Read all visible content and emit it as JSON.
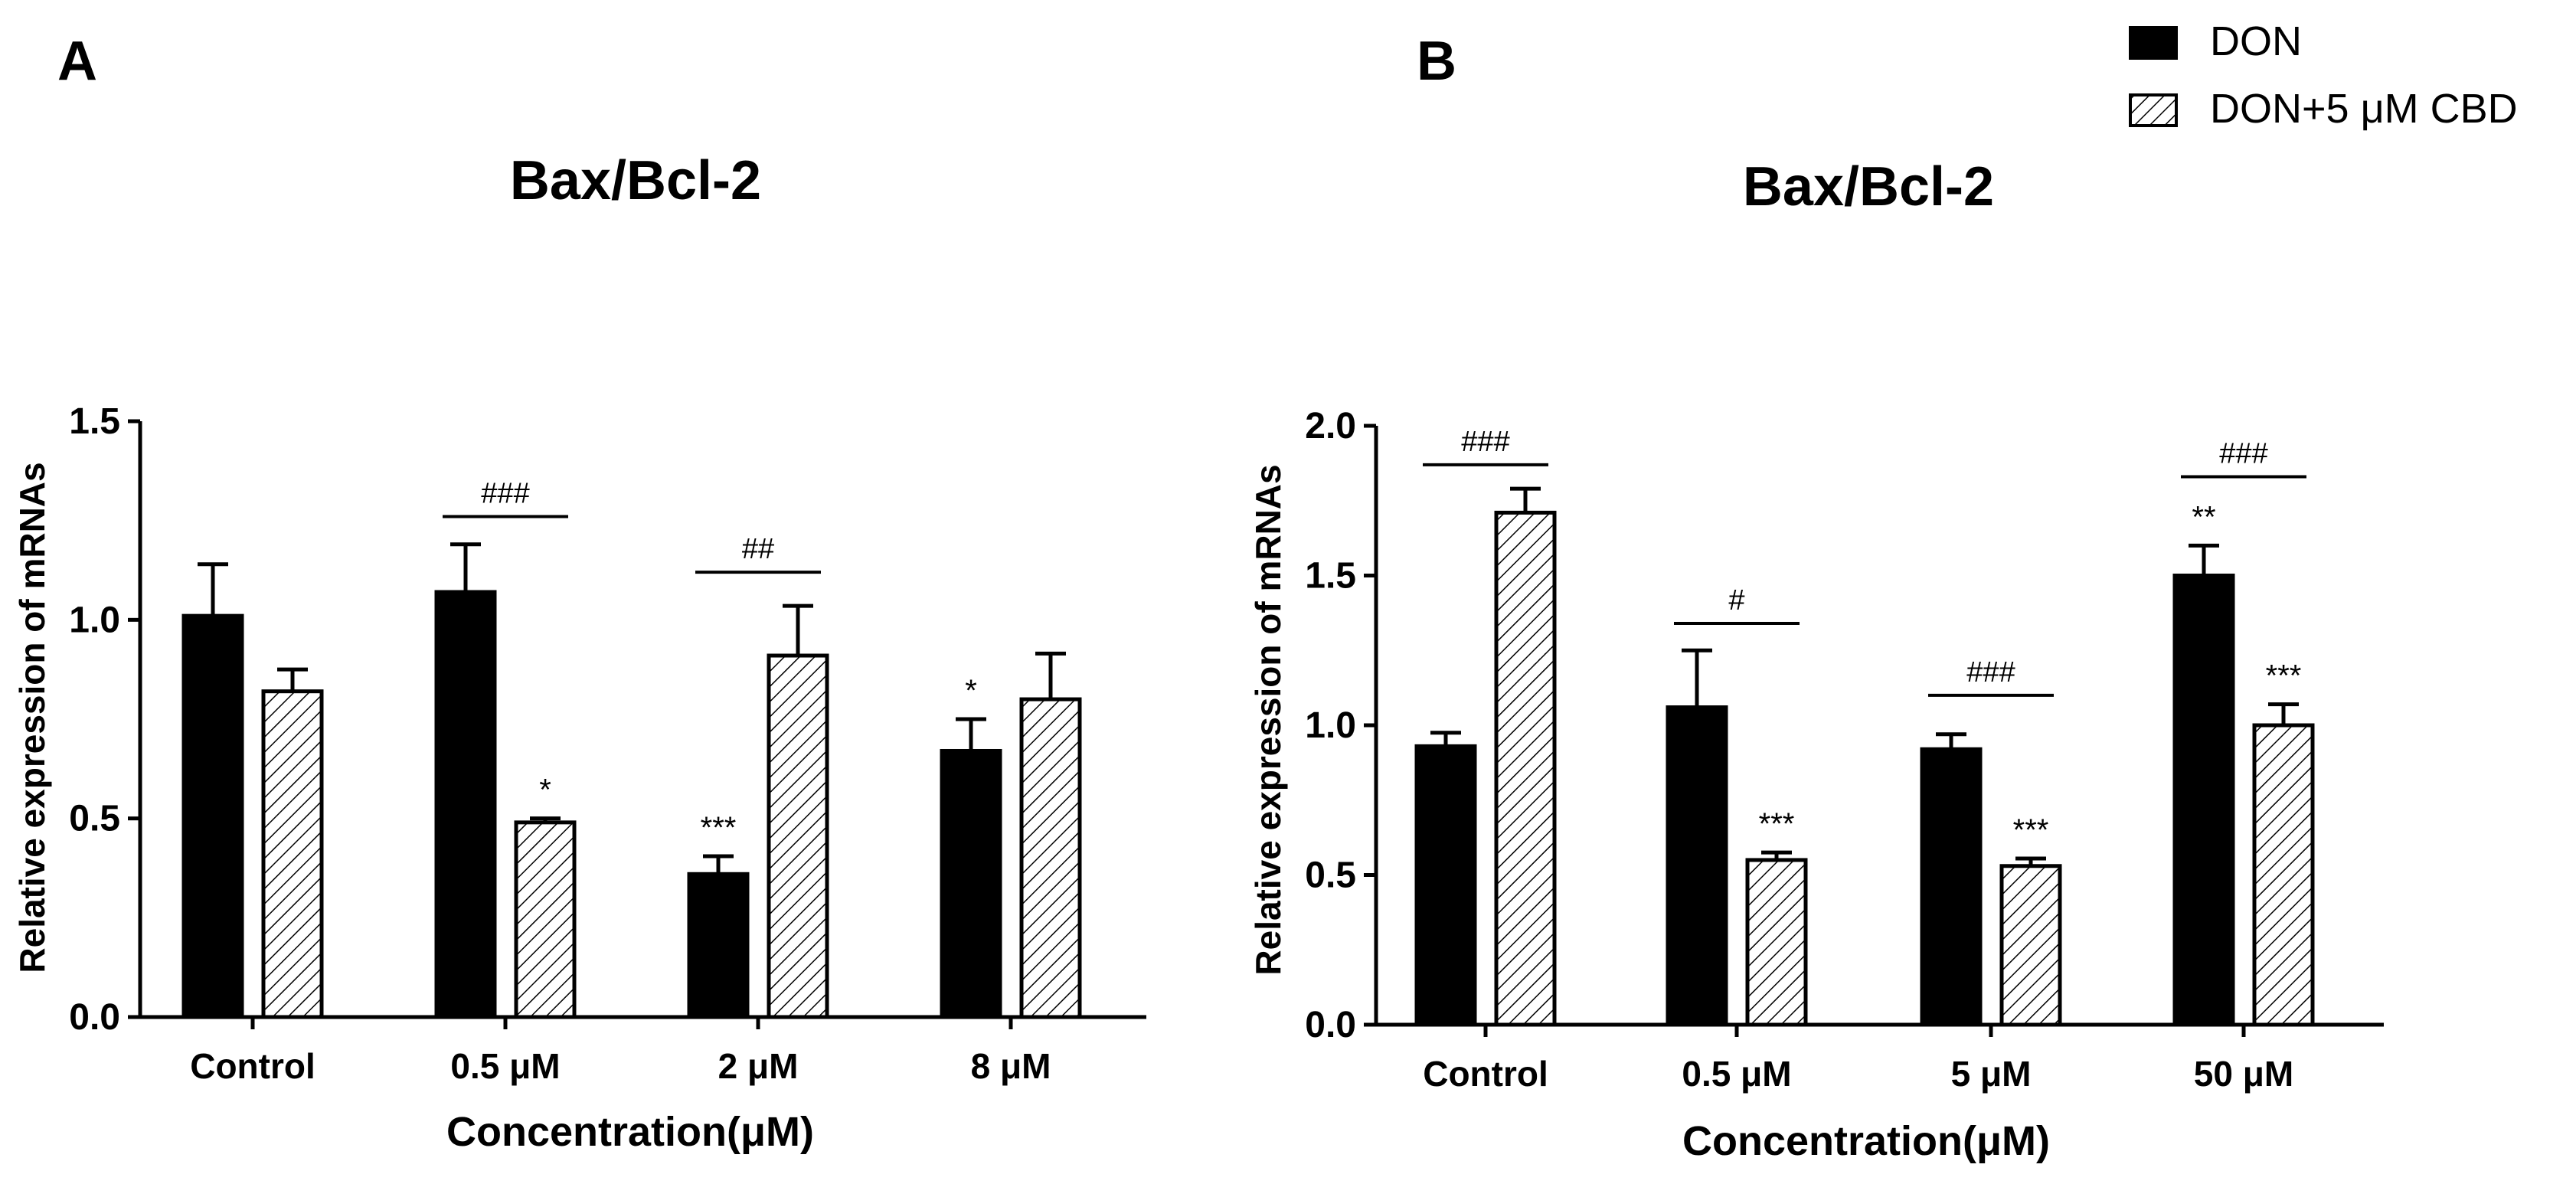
{
  "legend": {
    "position": "top-right",
    "items": [
      {
        "label": "DON",
        "pattern": "solid"
      },
      {
        "label": "DON+5 μM CBD",
        "pattern": "hatch"
      }
    ]
  },
  "colors": {
    "don": "#000000",
    "cbd_fill": "#ffffff",
    "axis": "#000000"
  },
  "chart_data": [
    {
      "panel_label": "A",
      "type": "bar",
      "title": "Bax/Bcl-2",
      "xlabel": "Concentration(μM)",
      "ylabel": "Relative expression of mRNAs",
      "ylim": [
        0,
        1.5
      ],
      "yticks": [
        "0.0",
        "0.5",
        "1.0",
        "1.5"
      ],
      "ytick_values": [
        0,
        0.5,
        1.0,
        1.5
      ],
      "categories": [
        "Control",
        "0.5 μM",
        "2 μM",
        "8 μM"
      ],
      "series": [
        {
          "name": "DON",
          "values": [
            1.01,
            1.07,
            0.36,
            0.67
          ],
          "errors": [
            0.13,
            0.12,
            0.045,
            0.08
          ],
          "annotations": [
            "",
            "",
            "***",
            "*"
          ]
        },
        {
          "name": "DON+5 μM CBD",
          "values": [
            0.82,
            0.49,
            0.91,
            0.8
          ],
          "errors": [
            0.055,
            0.01,
            0.125,
            0.115
          ],
          "annotations": [
            "",
            "*",
            "",
            ""
          ]
        }
      ],
      "comparisons": [
        {
          "category_index": 1,
          "label": "###",
          "level": 1.26
        },
        {
          "category_index": 2,
          "label": "##",
          "level": 1.12
        }
      ]
    },
    {
      "panel_label": "B",
      "type": "bar",
      "title": "Bax/Bcl-2",
      "xlabel": "Concentration(μM)",
      "ylabel": "Relative expression of mRNAs",
      "ylim": [
        0,
        2.0
      ],
      "yticks": [
        "0.0",
        "0.5",
        "1.0",
        "1.5",
        "2.0"
      ],
      "ytick_values": [
        0,
        0.5,
        1.0,
        1.5,
        2.0
      ],
      "categories": [
        "Control",
        "0.5 μM",
        "5 μM",
        "50 μM"
      ],
      "series": [
        {
          "name": "DON",
          "values": [
            0.93,
            1.06,
            0.92,
            1.5
          ],
          "errors": [
            0.045,
            0.19,
            0.05,
            0.1
          ],
          "annotations": [
            "",
            "",
            "",
            "**"
          ]
        },
        {
          "name": "DON+5 μM CBD",
          "values": [
            1.71,
            0.55,
            0.53,
            1.0
          ],
          "errors": [
            0.08,
            0.025,
            0.025,
            0.07
          ],
          "annotations": [
            "",
            "***",
            "***",
            "***"
          ]
        }
      ],
      "comparisons": [
        {
          "category_index": 0,
          "label": "###",
          "level": 1.87
        },
        {
          "category_index": 1,
          "label": "#",
          "level": 1.34
        },
        {
          "category_index": 2,
          "label": "###",
          "level": 1.1
        },
        {
          "category_index": 3,
          "label": "###",
          "level": 1.83
        }
      ]
    }
  ]
}
